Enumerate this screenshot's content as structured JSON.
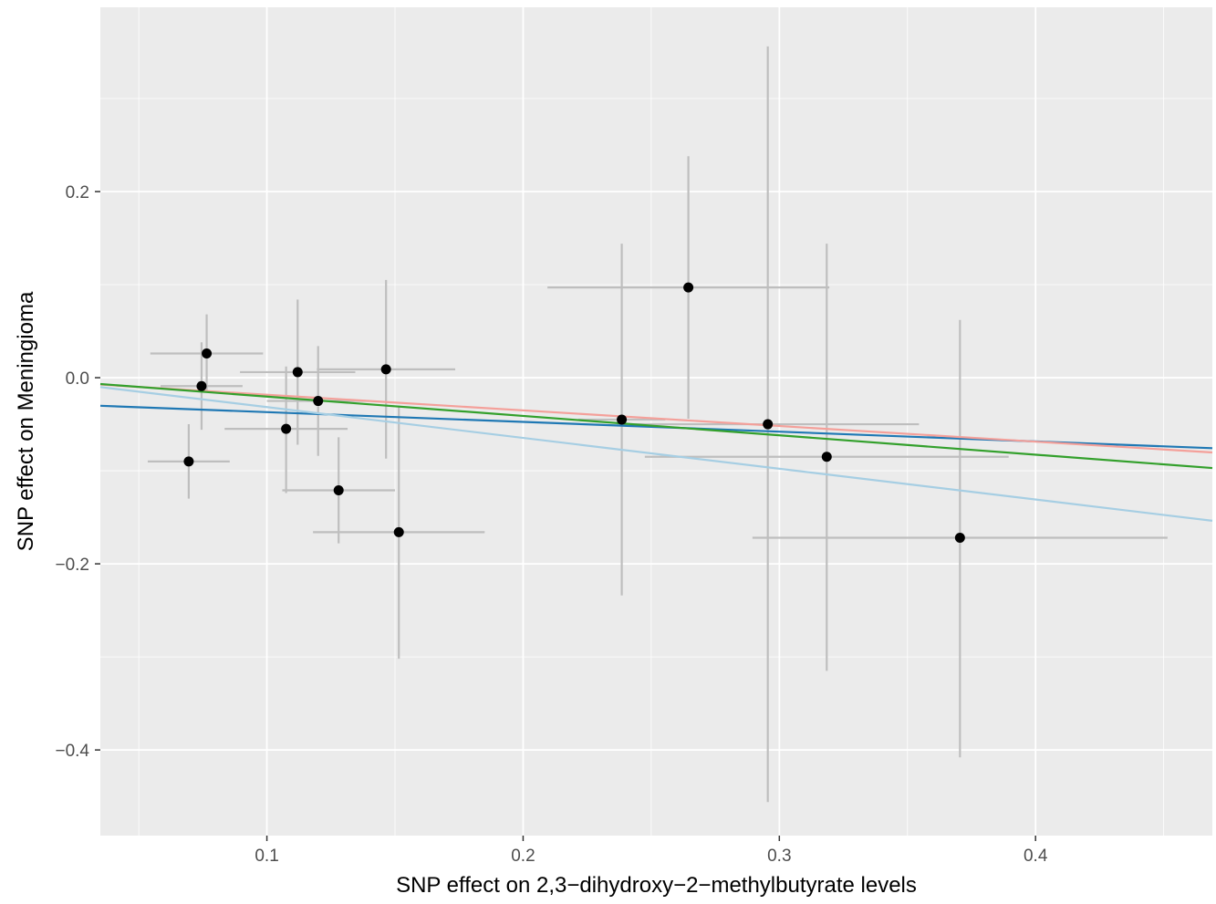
{
  "chart_data": {
    "type": "scatter",
    "xlabel": "SNP effect on 2,3−dihydroxy−2−methylbutyrate levels",
    "ylabel": "SNP effect on Meningioma",
    "xlim": [
      0.035,
      0.469
    ],
    "ylim": [
      -0.492,
      0.398
    ],
    "x_ticks": [
      0.1,
      0.2,
      0.3,
      0.4
    ],
    "x_tick_labels": [
      "0.1",
      "0.2",
      "0.3",
      "0.4"
    ],
    "y_ticks": [
      0.2,
      0.0,
      -0.2,
      -0.4
    ],
    "y_tick_labels": [
      "0.2",
      "0.0",
      "−0.2",
      "−0.4"
    ],
    "grid": true,
    "legend": "none",
    "colors": {
      "panel": "#EBEBEB",
      "grid": "#FFFFFF",
      "point": "#000000",
      "errorbar": "#BEBEBE"
    },
    "points": [
      {
        "x": 0.0695,
        "y": -0.09,
        "x_lo": 0.0535,
        "x_hi": 0.0855,
        "y_lo": -0.13,
        "y_hi": -0.05
      },
      {
        "x": 0.0745,
        "y": -0.009,
        "x_lo": 0.0585,
        "x_hi": 0.0905,
        "y_lo": -0.056,
        "y_hi": 0.038
      },
      {
        "x": 0.0765,
        "y": 0.026,
        "x_lo": 0.0545,
        "x_hi": 0.0985,
        "y_lo": -0.016,
        "y_hi": 0.068
      },
      {
        "x": 0.1075,
        "y": -0.055,
        "x_lo": 0.0835,
        "x_hi": 0.1315,
        "y_lo": -0.124,
        "y_hi": 0.012
      },
      {
        "x": 0.112,
        "y": 0.006,
        "x_lo": 0.0895,
        "x_hi": 0.1345,
        "y_lo": -0.072,
        "y_hi": 0.084
      },
      {
        "x": 0.12,
        "y": -0.025,
        "x_lo": 0.1,
        "x_hi": 0.14,
        "y_lo": -0.084,
        "y_hi": 0.034
      },
      {
        "x": 0.128,
        "y": -0.121,
        "x_lo": 0.106,
        "x_hi": 0.15,
        "y_lo": -0.178,
        "y_hi": -0.064
      },
      {
        "x": 0.1465,
        "y": 0.009,
        "x_lo": 0.1195,
        "x_hi": 0.1735,
        "y_lo": -0.087,
        "y_hi": 0.105
      },
      {
        "x": 0.1515,
        "y": -0.166,
        "x_lo": 0.118,
        "x_hi": 0.185,
        "y_lo": -0.302,
        "y_hi": -0.03
      },
      {
        "x": 0.2385,
        "y": -0.045,
        "x_lo": 0.2215,
        "x_hi": 0.2555,
        "y_lo": -0.234,
        "y_hi": 0.144
      },
      {
        "x": 0.2645,
        "y": 0.097,
        "x_lo": 0.2095,
        "x_hi": 0.3195,
        "y_lo": -0.044,
        "y_hi": 0.238
      },
      {
        "x": 0.2955,
        "y": -0.05,
        "x_lo": 0.2365,
        "x_hi": 0.3545,
        "y_lo": -0.456,
        "y_hi": 0.356
      },
      {
        "x": 0.3185,
        "y": -0.085,
        "x_lo": 0.2475,
        "x_hi": 0.3895,
        "y_lo": -0.315,
        "y_hi": 0.144
      },
      {
        "x": 0.3705,
        "y": -0.172,
        "x_lo": 0.2895,
        "x_hi": 0.4515,
        "y_lo": -0.408,
        "y_hi": 0.062
      }
    ],
    "lines": [
      {
        "color": "#1F78B4",
        "slope": -0.105,
        "intercept": -0.0265
      },
      {
        "color": "#F4A09A",
        "slope": -0.168,
        "intercept": -0.0015
      },
      {
        "color": "#33A02C",
        "slope": -0.208,
        "intercept": 0.0005
      },
      {
        "color": "#A6CEE3",
        "slope": -0.331,
        "intercept": 0.0015
      }
    ]
  }
}
